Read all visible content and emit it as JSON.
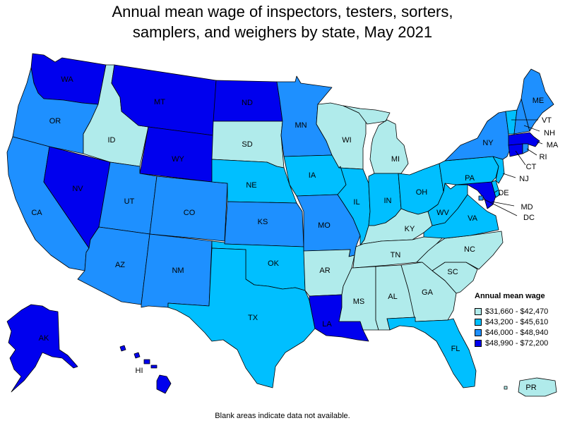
{
  "title_lines": [
    "Annual mean wage of inspectors, testers, sorters,",
    "samplers, and weighers by state, May 2021"
  ],
  "legend": {
    "title": "Annual mean wage",
    "ranges": [
      {
        "label": "$31,660 - $42,470",
        "color": "#b0ebeb"
      },
      {
        "label": "$43,200 - $45,610",
        "color": "#00bfff"
      },
      {
        "label": "$46,000 - $48,940",
        "color": "#1e90ff"
      },
      {
        "label": "$48,990 - $72,200",
        "color": "#0000ee"
      }
    ]
  },
  "footnote": "Blank areas indicate data not available.",
  "states": [
    {
      "abbr": "WA",
      "bin": 3
    },
    {
      "abbr": "OR",
      "bin": 2
    },
    {
      "abbr": "CA",
      "bin": 2
    },
    {
      "abbr": "NV",
      "bin": 3
    },
    {
      "abbr": "ID",
      "bin": 0
    },
    {
      "abbr": "MT",
      "bin": 3
    },
    {
      "abbr": "WY",
      "bin": 3
    },
    {
      "abbr": "UT",
      "bin": 2
    },
    {
      "abbr": "AZ",
      "bin": 2
    },
    {
      "abbr": "CO",
      "bin": 2
    },
    {
      "abbr": "NM",
      "bin": 2
    },
    {
      "abbr": "ND",
      "bin": 3
    },
    {
      "abbr": "SD",
      "bin": 0
    },
    {
      "abbr": "NE",
      "bin": 1
    },
    {
      "abbr": "KS",
      "bin": 2
    },
    {
      "abbr": "OK",
      "bin": 1
    },
    {
      "abbr": "TX",
      "bin": 1
    },
    {
      "abbr": "MN",
      "bin": 2
    },
    {
      "abbr": "IA",
      "bin": 1
    },
    {
      "abbr": "MO",
      "bin": 2
    },
    {
      "abbr": "AR",
      "bin": 0
    },
    {
      "abbr": "LA",
      "bin": 3
    },
    {
      "abbr": "WI",
      "bin": 0
    },
    {
      "abbr": "IL",
      "bin": 1
    },
    {
      "abbr": "MI",
      "bin": 0
    },
    {
      "abbr": "IN",
      "bin": 1
    },
    {
      "abbr": "OH",
      "bin": 1
    },
    {
      "abbr": "KY",
      "bin": 0
    },
    {
      "abbr": "TN",
      "bin": 0
    },
    {
      "abbr": "MS",
      "bin": 0
    },
    {
      "abbr": "AL",
      "bin": 0
    },
    {
      "abbr": "GA",
      "bin": 0
    },
    {
      "abbr": "FL",
      "bin": 1
    },
    {
      "abbr": "SC",
      "bin": 0
    },
    {
      "abbr": "NC",
      "bin": 0
    },
    {
      "abbr": "VA",
      "bin": 1
    },
    {
      "abbr": "WV",
      "bin": 1
    },
    {
      "abbr": "PA",
      "bin": 1
    },
    {
      "abbr": "NY",
      "bin": 2
    },
    {
      "abbr": "VT",
      "bin": 1
    },
    {
      "abbr": "NH",
      "bin": 2
    },
    {
      "abbr": "ME",
      "bin": 2
    },
    {
      "abbr": "MA",
      "bin": 3
    },
    {
      "abbr": "RI",
      "bin": 2
    },
    {
      "abbr": "CT",
      "bin": 3
    },
    {
      "abbr": "NJ",
      "bin": 1
    },
    {
      "abbr": "DE",
      "bin": 1
    },
    {
      "abbr": "MD",
      "bin": 3
    },
    {
      "abbr": "DC",
      "bin": 2
    },
    {
      "abbr": "AK",
      "bin": 3
    },
    {
      "abbr": "HI",
      "bin": 3
    },
    {
      "abbr": "PR",
      "bin": 0
    }
  ]
}
